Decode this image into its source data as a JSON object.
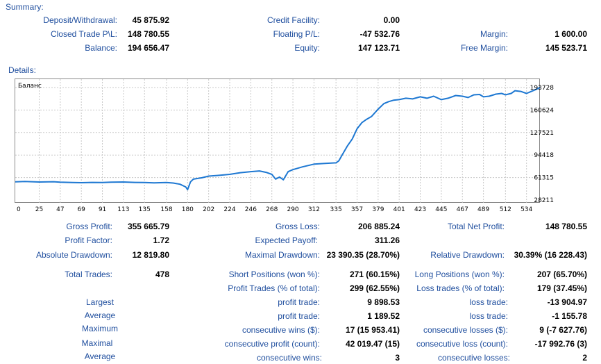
{
  "summary": {
    "title": "Summary:",
    "deposit_label": "Deposit/Withdrawal:",
    "deposit_value": "45 875.92",
    "credit_label": "Credit Facility:",
    "credit_value": "0.00",
    "closed_label": "Closed Trade P\\L:",
    "closed_value": "148 780.55",
    "floating_label": "Floating P/L:",
    "floating_value": "-47 532.76",
    "margin_label": "Margin:",
    "margin_value": "1 600.00",
    "balance_label": "Balance:",
    "balance_value": "194 656.47",
    "equity_label": "Equity:",
    "equity_value": "147 123.71",
    "free_margin_label": "Free Margin:",
    "free_margin_value": "145 523.71"
  },
  "details": {
    "title": "Details:",
    "gross_profit_label": "Gross Profit:",
    "gross_profit_value": "355 665.79",
    "gross_loss_label": "Gross Loss:",
    "gross_loss_value": "206 885.24",
    "total_net_label": "Total Net Profit:",
    "total_net_value": "148 780.55",
    "profit_factor_label": "Profit Factor:",
    "profit_factor_value": "1.72",
    "expected_payoff_label": "Expected Payoff:",
    "expected_payoff_value": "311.26",
    "abs_drawdown_label": "Absolute Drawdown:",
    "abs_drawdown_value": "12 819.80",
    "max_drawdown_label": "Maximal Drawdown:",
    "max_drawdown_value": "23 390.35 (28.70%)",
    "rel_drawdown_label": "Relative Drawdown:",
    "rel_drawdown_value": "30.39% (16 228.43)",
    "total_trades_label": "Total Trades:",
    "total_trades_value": "478",
    "short_label": "Short Positions (won %):",
    "short_value": "271 (60.15%)",
    "long_label": "Long Positions (won %):",
    "long_value": "207 (65.70%)",
    "profit_trades_label": "Profit Trades (% of total):",
    "profit_trades_value": "299 (62.55%)",
    "loss_trades_label": "Loss trades (% of total):",
    "loss_trades_value": "179 (37.45%)",
    "largest_label": "Largest",
    "largest_profit_label": "profit trade:",
    "largest_profit_value": "9 898.53",
    "largest_loss_label": "loss trade:",
    "largest_loss_value": "-13 904.97",
    "average_label": "Average",
    "average_profit_label": "profit trade:",
    "average_profit_value": "1 189.52",
    "average_loss_label": "loss trade:",
    "average_loss_value": "-1 155.78",
    "maximum_label": "Maximum",
    "max_wins_label": "consecutive wins ($):",
    "max_wins_value": "17 (15 953.41)",
    "max_losses_label": "consecutive losses ($):",
    "max_losses_value": "9 (-7 627.76)",
    "maximal_label": "Maximal",
    "maximal_profit_label": "consecutive profit (count):",
    "maximal_profit_value": "42 019.47 (15)",
    "maximal_loss_label": "consecutive loss (count):",
    "maximal_loss_value": "-17 992.76 (3)",
    "average2_label": "Average",
    "avg_wins_label": "consecutive wins:",
    "avg_wins_value": "3",
    "avg_losses_label": "consecutive losses:",
    "avg_losses_value": "2"
  },
  "chart_data": {
    "type": "line",
    "title": "Баланс",
    "xlabel": "",
    "ylabel": "",
    "x_ticks": [
      0,
      25,
      47,
      69,
      91,
      113,
      135,
      158,
      180,
      202,
      224,
      246,
      268,
      290,
      312,
      335,
      357,
      379,
      401,
      423,
      445,
      467,
      489,
      512,
      534
    ],
    "y_ticks": [
      28211,
      61315,
      94418,
      127521,
      160624,
      193728
    ],
    "xlim": [
      0,
      548
    ],
    "ylim": [
      28211,
      193728
    ],
    "grid": true,
    "line_color": "#1e78d2",
    "x": [
      0,
      10,
      25,
      40,
      47,
      60,
      69,
      80,
      91,
      100,
      113,
      125,
      135,
      145,
      158,
      165,
      172,
      178,
      180,
      183,
      186,
      195,
      202,
      212,
      224,
      235,
      246,
      255,
      262,
      268,
      272,
      276,
      280,
      285,
      290,
      300,
      312,
      322,
      335,
      338,
      342,
      347,
      352,
      357,
      362,
      367,
      372,
      379,
      385,
      390,
      395,
      401,
      408,
      415,
      423,
      430,
      437,
      445,
      452,
      460,
      467,
      473,
      479,
      485,
      489,
      495,
      502,
      508,
      512,
      518,
      522,
      528,
      534,
      539,
      544,
      548
    ],
    "values": [
      55000,
      55500,
      54800,
      55200,
      54500,
      54000,
      53800,
      54200,
      54000,
      54500,
      54800,
      54200,
      54000,
      53500,
      54000,
      53200,
      51500,
      47500,
      43500,
      55000,
      59000,
      61000,
      63500,
      64500,
      66000,
      68500,
      70000,
      71000,
      69000,
      66000,
      59000,
      62000,
      58000,
      70000,
      73000,
      77000,
      81000,
      82000,
      83000,
      86000,
      96000,
      108000,
      118000,
      133000,
      142000,
      147000,
      151000,
      162000,
      170000,
      173000,
      175000,
      176000,
      178000,
      177000,
      180000,
      178000,
      181000,
      176000,
      178000,
      182000,
      181000,
      179000,
      183000,
      183500,
      180000,
      181000,
      184000,
      185000,
      183000,
      185000,
      189000,
      188000,
      185000,
      188000,
      191000,
      193728
    ]
  }
}
